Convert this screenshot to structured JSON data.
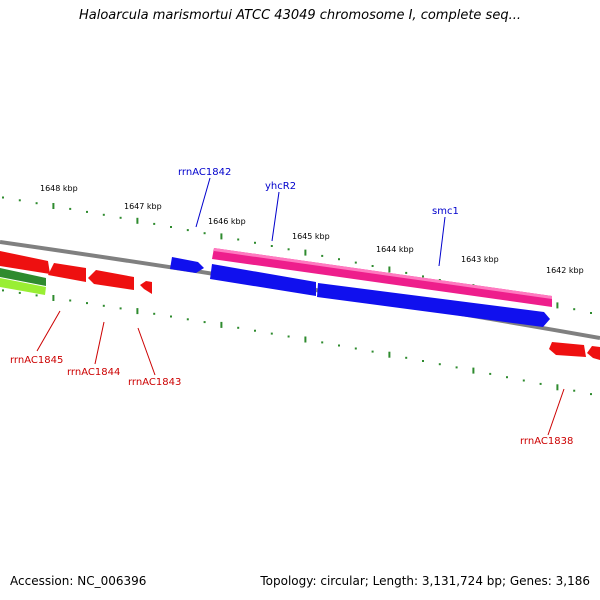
{
  "title": "Haloarcula marismortui ATCC 43049 chromosome I, complete seq...",
  "footer": {
    "accession": "Accession: NC_006396",
    "summary": "Topology: circular; Length: 3,131,724 bp; Genes: 3,186"
  },
  "colors": {
    "backbone": "#808080",
    "tick": "#2e8b2e",
    "forward_gene_label": "#0000cc",
    "reverse_gene_label": "#cc0000",
    "gene_blue": "#1010ee",
    "gene_magenta": "#ee1e8c",
    "gene_red": "#ee1010",
    "gene_green": "#2e8b2e",
    "gene_lime": "#99ee33"
  },
  "scale_labels": [
    "1648 kbp",
    "1647 kbp",
    "1646 kbp",
    "1645 kbp",
    "1644 kbp",
    "1643 kbp",
    "1642 kbp"
  ],
  "forward_labels": [
    "rrnAC1842",
    "yhcR2",
    "smc1"
  ],
  "reverse_labels": [
    "rrnAC1845",
    "rrnAC1844",
    "rrnAC1843",
    "rrnAC1838"
  ]
}
